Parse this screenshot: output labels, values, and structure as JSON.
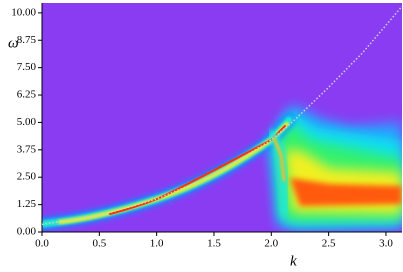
{
  "chart_data": {
    "type": "line",
    "x_label": "k",
    "y_label": "ω",
    "x": [
      0,
      0.5,
      1.0,
      1.5,
      2.0,
      2.2,
      2.5,
      2.8,
      3.14
    ],
    "series": [
      {
        "color": "#d0d0d0",
        "values": [
          0.35,
          0.75,
          1.5,
          2.6,
          4.2,
          5.1,
          6.6,
          8.2,
          10.3
        ]
      }
    ],
    "xlim": [
      0,
      3.14
    ],
    "ylim": [
      0,
      10.45
    ],
    "xticks": [
      {
        "value": 0,
        "label": "0.0"
      },
      {
        "value": 0.5,
        "label": "0.5"
      },
      {
        "value": 1,
        "label": "1.0"
      },
      {
        "value": 1.5,
        "label": "1.5"
      },
      {
        "value": 2,
        "label": "2.0"
      },
      {
        "value": 2.5,
        "label": "2.5"
      },
      {
        "value": 3,
        "label": "3.0"
      }
    ],
    "yticks": [
      {
        "value": 0,
        "label": "0.00"
      },
      {
        "value": 1.25,
        "label": "1.25"
      },
      {
        "value": 2.5,
        "label": "2.50"
      },
      {
        "value": 3.75,
        "label": "3.75"
      },
      {
        "value": 5,
        "label": "5.00"
      },
      {
        "value": 6.25,
        "label": "6.25"
      },
      {
        "value": 7.5,
        "label": "7.50"
      },
      {
        "value": 8.75,
        "label": "8.75"
      },
      {
        "value": 10,
        "label": "10.00"
      }
    ],
    "background_color": "#8a3cf2",
    "grid": false
  }
}
